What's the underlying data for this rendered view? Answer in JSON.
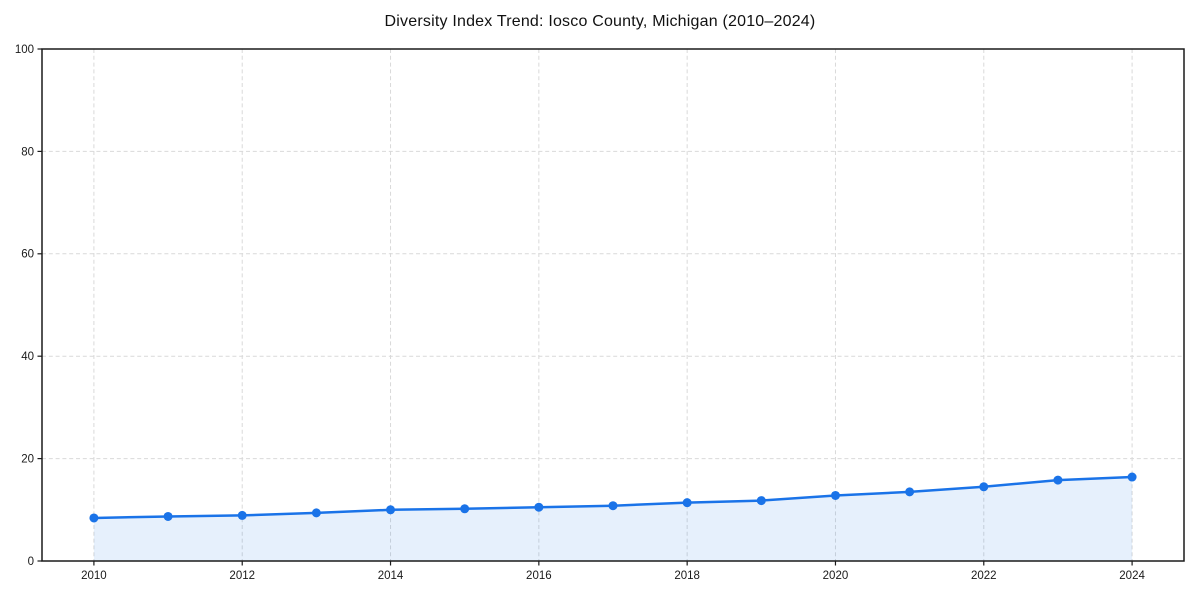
{
  "chart_data": {
    "type": "line",
    "title": "Diversity Index Trend: Iosco County, Michigan (2010–2024)",
    "x": [
      2010,
      2011,
      2012,
      2013,
      2014,
      2015,
      2016,
      2017,
      2018,
      2019,
      2020,
      2021,
      2022,
      2023,
      2024
    ],
    "series": [
      {
        "name": "Diversity Index",
        "values": [
          8.4,
          8.7,
          8.9,
          9.4,
          10.0,
          10.2,
          10.5,
          10.8,
          11.4,
          11.8,
          12.8,
          13.5,
          14.5,
          15.8,
          16.4
        ]
      }
    ],
    "xlabel": "",
    "ylabel": "",
    "xlim": [
      2009.3,
      2024.7
    ],
    "ylim": [
      0,
      100
    ],
    "xticks": [
      2010,
      2012,
      2014,
      2016,
      2018,
      2020,
      2022,
      2024
    ],
    "yticks": [
      0,
      20,
      40,
      60,
      80,
      100
    ],
    "grid": true,
    "grid_style": "dashed",
    "legend": "none",
    "marker": "circle",
    "area_fill": true,
    "colors": {
      "line": "#1a73e8",
      "marker": "#1a73e8",
      "area": "#1a73e8",
      "area_opacity": 0.11,
      "grid": "#d9d9d9",
      "spine": "#1a1a1a",
      "tick_text": "#1a1a1a",
      "background": "#ffffff"
    }
  }
}
